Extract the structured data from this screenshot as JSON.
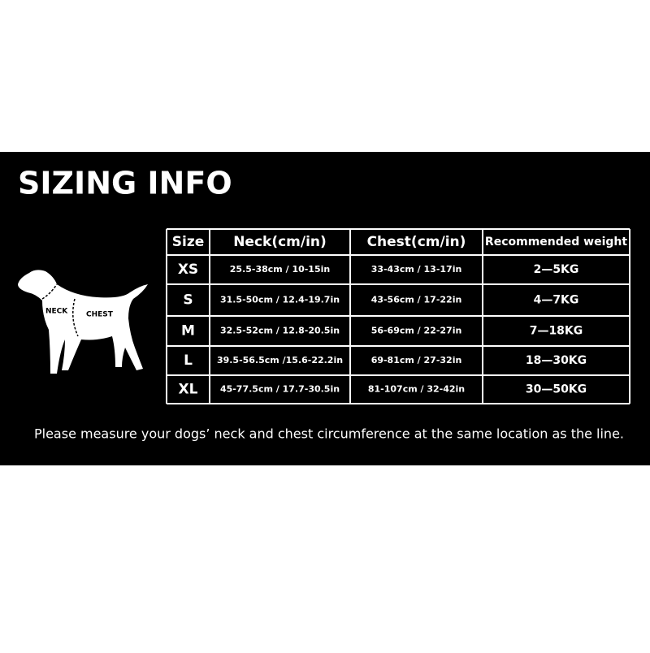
{
  "header": {
    "title": "SIZING INFO"
  },
  "dog": {
    "neck_label": "NECK",
    "chest_label": "CHEST"
  },
  "table": {
    "columns": [
      "Size",
      "Neck(cm/in)",
      "Chest(cm/in)",
      "Recommended weight"
    ],
    "rows": [
      [
        "XS",
        "25.5-38cm / 10-15in",
        "33-43cm / 13-17in",
        "2—5KG"
      ],
      [
        "S",
        "31.5-50cm / 12.4-19.7in",
        "43-56cm / 17-22in",
        "4—7KG"
      ],
      [
        "M",
        "32.5-52cm / 12.8-20.5in",
        "56-69cm / 22-27in",
        "7—18KG"
      ],
      [
        "L",
        "39.5-56.5cm /15.6-22.2in",
        "69-81cm / 27-32in",
        "18—30KG"
      ],
      [
        "XL",
        "45-77.5cm / 17.7-30.5in",
        "81-107cm / 32-42in",
        "30—50KG"
      ]
    ]
  },
  "footnote": "Please measure your dogs’ neck and chest circumference at the same location as the line."
}
